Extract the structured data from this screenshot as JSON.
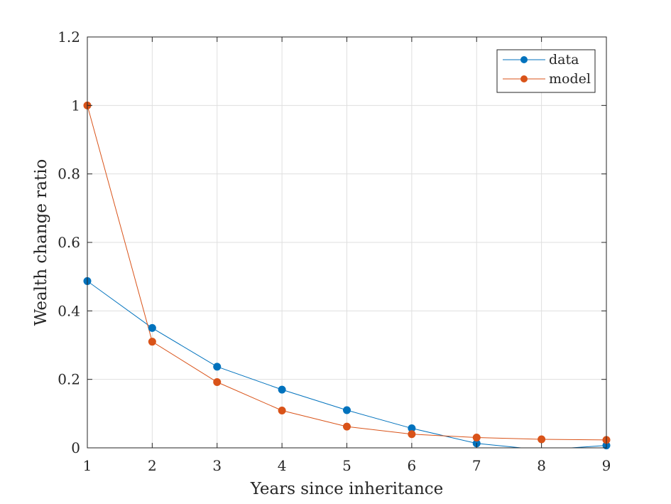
{
  "chart_data": {
    "type": "line",
    "xlabel": "Years since inheritance",
    "ylabel": "Wealth change ratio",
    "xlim": [
      1,
      9
    ],
    "ylim": [
      0,
      1.2
    ],
    "xticks": [
      "1",
      "2",
      "3",
      "4",
      "5",
      "6",
      "7",
      "8",
      "9"
    ],
    "yticks": [
      "0",
      "0.2",
      "0.4",
      "0.6",
      "0.8",
      "1",
      "1.2"
    ],
    "grid": true,
    "legend_position": "top-right",
    "x": [
      1,
      2,
      3,
      4,
      5,
      6,
      7,
      8,
      9
    ],
    "series": [
      {
        "name": "data",
        "color": "#0072BD",
        "marker": "circle",
        "values": [
          0.487,
          0.35,
          0.237,
          0.17,
          0.11,
          0.057,
          0.013,
          -0.006,
          0.007
        ]
      },
      {
        "name": "model",
        "color": "#D95319",
        "marker": "circle",
        "values": [
          1.0,
          0.31,
          0.192,
          0.109,
          0.062,
          0.04,
          0.03,
          0.025,
          0.023
        ]
      }
    ]
  }
}
